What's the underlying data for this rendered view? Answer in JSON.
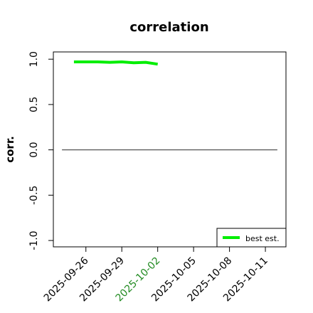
{
  "chart_data": {
    "type": "line",
    "title": "correlation",
    "y_label": "corr.",
    "x": [
      "2025-09-25",
      "2025-09-26",
      "2025-09-27",
      "2025-09-28",
      "2025-09-29",
      "2025-09-30",
      "2025-10-01",
      "2025-10-02"
    ],
    "series": [
      {
        "name": "best est.",
        "color": "#00ee00",
        "values": [
          0.97,
          0.97,
          0.97,
          0.965,
          0.97,
          0.96,
          0.965,
          0.945
        ]
      }
    ],
    "hline": 0,
    "hline_color": "#555555",
    "xlim": [
      "2025-09-24",
      "2025-10-12"
    ],
    "xticks": [
      "2025-09-26",
      "2025-09-29",
      "2025-10-02",
      "2025-10-05",
      "2025-10-08",
      "2025-10-11"
    ],
    "highlight_xtick": "2025-10-02",
    "highlight_color": "#228b22",
    "ylim": [
      -1.07,
      1.08
    ],
    "yticks": [
      -1.0,
      -0.5,
      0.0,
      0.5,
      1.0
    ],
    "ytick_labels": [
      "-1.0",
      "-0.5",
      "0.0",
      "0.5",
      "1.0"
    ],
    "legend": "bottom-right"
  }
}
